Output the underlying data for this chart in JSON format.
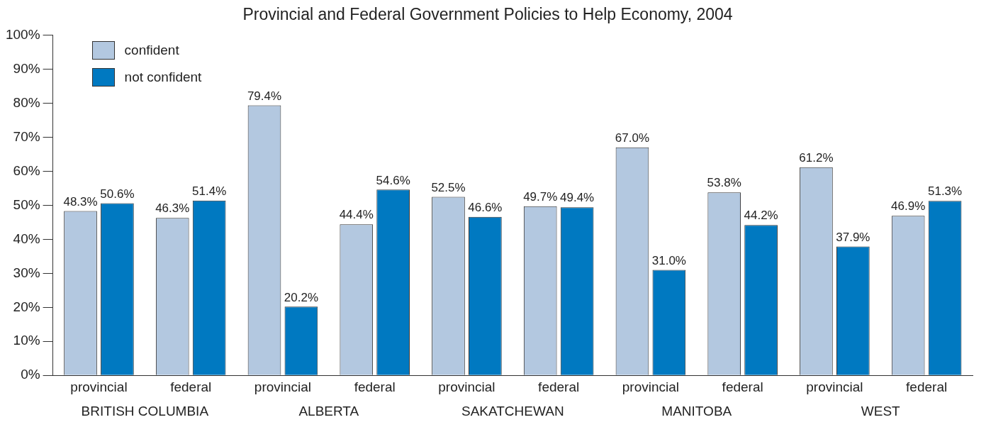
{
  "chart_data": {
    "type": "bar",
    "title": "Provincial and Federal Government Policies to Help Economy, 2004",
    "categories": [
      "provincial",
      "federal",
      "provincial",
      "federal",
      "provincial",
      "federal",
      "provincial",
      "federal",
      "provincial",
      "federal"
    ],
    "series": [
      {
        "name": "confident",
        "color": "#b3c8e0",
        "values": [
          48.3,
          46.3,
          79.4,
          44.4,
          52.5,
          49.7,
          67.0,
          53.8,
          61.2,
          46.9
        ],
        "value_labels": [
          "48.3%",
          "46.3%",
          "79.4%",
          "44.4%",
          "52.5%",
          "49.7%",
          "67.0%",
          "53.8%",
          "61.2%",
          "46.9%"
        ]
      },
      {
        "name": "not confident",
        "color": "#0079c1",
        "values": [
          50.6,
          51.4,
          20.2,
          54.6,
          46.6,
          49.4,
          31.0,
          44.2,
          37.9,
          51.3
        ],
        "value_labels": [
          "50.6%",
          "51.4%",
          "20.2%",
          "54.6%",
          "46.6%",
          "49.4%",
          "31.0%",
          "44.2%",
          "37.9%",
          "51.3%"
        ]
      }
    ],
    "ylim": [
      0,
      100
    ],
    "yticks": [
      {
        "value": 0,
        "label": "0%"
      },
      {
        "value": 10,
        "label": "10%"
      },
      {
        "value": 20,
        "label": "20%"
      },
      {
        "value": 30,
        "label": "30%"
      },
      {
        "value": 40,
        "label": "40%"
      },
      {
        "value": 50,
        "label": "50%"
      },
      {
        "value": 60,
        "label": "60%"
      },
      {
        "value": 70,
        "label": "70%"
      },
      {
        "value": 80,
        "label": "80%"
      },
      {
        "value": 90,
        "label": "90%"
      },
      {
        "value": 100,
        "label": "100%"
      }
    ],
    "annotations": [
      "BRITISH COLUMBIA",
      "ALBERTA",
      "SAKATCHEWAN",
      "MANITOBA",
      "WEST"
    ],
    "grid": false,
    "legend": "top left"
  }
}
